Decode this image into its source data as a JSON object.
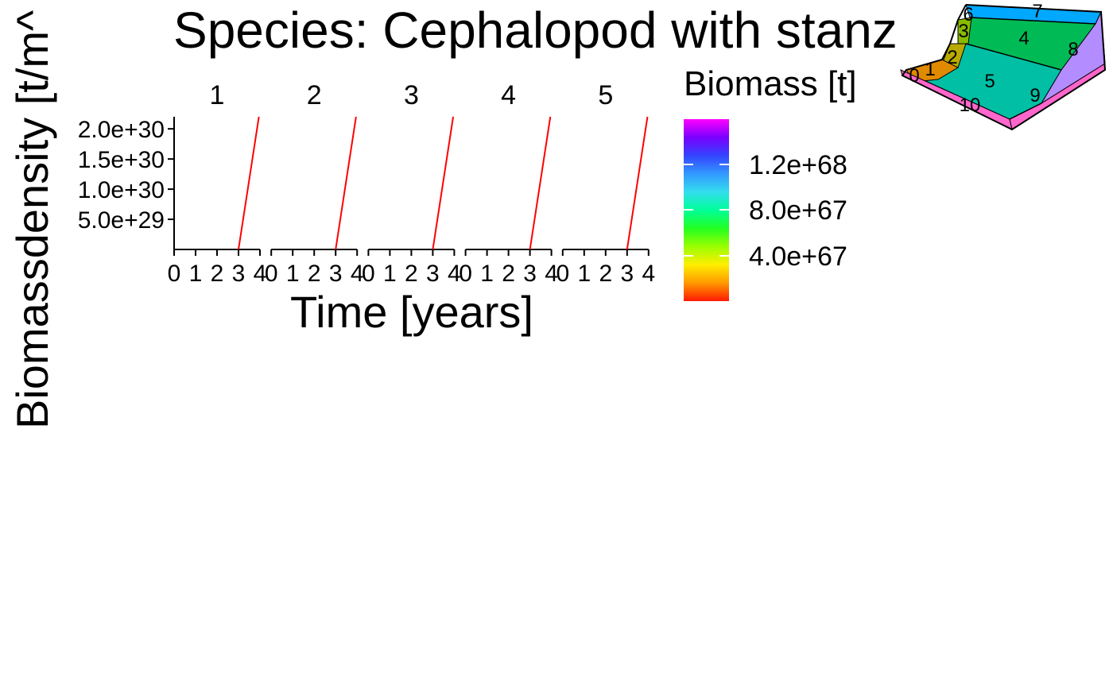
{
  "chart_data": {
    "type": "line",
    "title": "Species: Cephalopod with stanz",
    "xlabel": "Time [years]",
    "ylabel": "Biomassdensity [t/m^",
    "facets": [
      "1",
      "2",
      "3",
      "4",
      "5"
    ],
    "x_ticks": [
      "0",
      "1",
      "2",
      "3",
      "4"
    ],
    "xlim": [
      0,
      4
    ],
    "y_ticks": [
      "5.0e+29",
      "1.0e+30",
      "1.5e+30",
      "2.0e+30"
    ],
    "y_tick_values": [
      5e+29,
      1e+30,
      1.5e+30,
      2e+30
    ],
    "ylim": [
      0,
      2.2e+30
    ],
    "series": [
      {
        "facet": "1",
        "x": [
          3,
          3.95
        ],
        "y": [
          0,
          2.2e+30
        ],
        "color": "#ff0000"
      },
      {
        "facet": "2",
        "x": [
          3,
          3.95
        ],
        "y": [
          0,
          2.2e+30
        ],
        "color": "#ff0000"
      },
      {
        "facet": "3",
        "x": [
          3,
          3.95
        ],
        "y": [
          0,
          2.2e+30
        ],
        "color": "#ff0000"
      },
      {
        "facet": "4",
        "x": [
          3,
          3.95
        ],
        "y": [
          0,
          2.2e+30
        ],
        "color": "#ff0000"
      },
      {
        "facet": "5",
        "x": [
          3,
          3.95
        ],
        "y": [
          0,
          2.2e+30
        ],
        "color": "#ff0000"
      }
    ],
    "grid": false,
    "legend": {
      "title": "Biomass [t]",
      "placement": "right",
      "ticks": [
        "4.0e+67",
        "8.0e+67",
        "1.2e+68"
      ],
      "colors": [
        "#ff1a00",
        "#ff9900",
        "#ffee00",
        "#99ff00",
        "#22ff22",
        "#00ff99",
        "#33ddee",
        "#3399ff",
        "#3344ff",
        "#7a00ff",
        "#ff00ff"
      ]
    }
  },
  "inset_map": {
    "labels": [
      "0",
      "1",
      "2",
      "3",
      "4",
      "5",
      "6",
      "7",
      "8",
      "9",
      "10"
    ],
    "colors": {
      "box_0": "#e08a00",
      "box_2": "#b8aa00",
      "box_3": "#88bb00",
      "box_4": "#00bb55",
      "box_5": "#00bfa5",
      "box_6": "#00a8ff",
      "box_8": "#b38cff",
      "box_10": "#ff66cc"
    }
  }
}
